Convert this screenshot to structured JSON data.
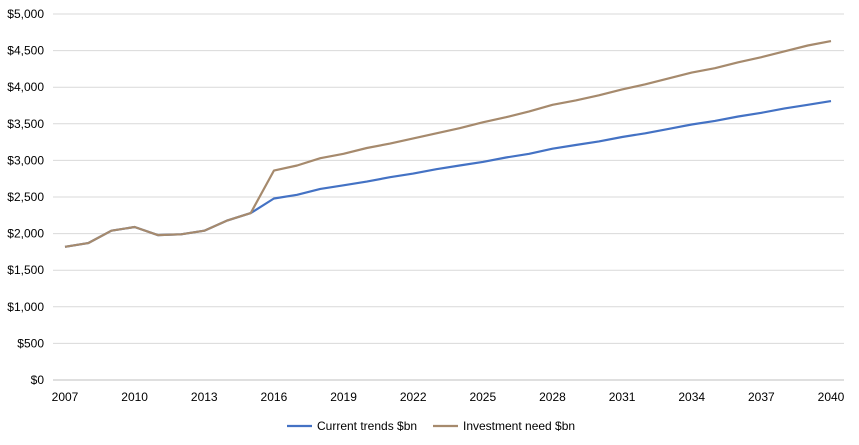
{
  "chart_data": {
    "type": "line",
    "title": "",
    "xlabel": "",
    "ylabel": "",
    "ylim": [
      0,
      5000
    ],
    "yticks": [
      0,
      500,
      1000,
      1500,
      2000,
      2500,
      3000,
      3500,
      4000,
      4500,
      5000
    ],
    "ytick_labels": [
      "$0",
      "$500",
      "$1,000",
      "$1,500",
      "$2,000",
      "$2,500",
      "$3,000",
      "$3,500",
      "$4,000",
      "$4,500",
      "$5,000"
    ],
    "xlim": [
      2007,
      2040
    ],
    "xticks": [
      2007,
      2010,
      2013,
      2016,
      2019,
      2022,
      2025,
      2028,
      2031,
      2034,
      2037,
      2040
    ],
    "xtick_labels": [
      "2007",
      "2010",
      "2013",
      "2016",
      "2019",
      "2022",
      "2025",
      "2028",
      "2031",
      "2034",
      "2037",
      "2040"
    ],
    "grid": true,
    "legend_position": "bottom",
    "x": [
      2007,
      2008,
      2009,
      2010,
      2011,
      2012,
      2013,
      2014,
      2015,
      2016,
      2017,
      2018,
      2019,
      2020,
      2021,
      2022,
      2023,
      2024,
      2025,
      2026,
      2027,
      2028,
      2029,
      2030,
      2031,
      2032,
      2033,
      2034,
      2035,
      2036,
      2037,
      2038,
      2039,
      2040
    ],
    "series": [
      {
        "name": "Current trends $bn",
        "color": "#4472c4",
        "values": [
          1820,
          1870,
          2040,
          2090,
          1980,
          1990,
          2040,
          2180,
          2280,
          2480,
          2530,
          2610,
          2660,
          2710,
          2770,
          2820,
          2880,
          2930,
          2980,
          3040,
          3090,
          3160,
          3210,
          3260,
          3320,
          3370,
          3430,
          3490,
          3540,
          3600,
          3650,
          3710,
          3760,
          3810
        ]
      },
      {
        "name": "Investment need $bn",
        "color": "#a68a6d",
        "values": [
          1820,
          1870,
          2040,
          2090,
          1980,
          1990,
          2040,
          2180,
          2280,
          2860,
          2930,
          3030,
          3090,
          3170,
          3230,
          3300,
          3370,
          3440,
          3520,
          3590,
          3670,
          3760,
          3820,
          3890,
          3970,
          4040,
          4120,
          4200,
          4260,
          4340,
          4410,
          4490,
          4570,
          4630
        ]
      }
    ]
  }
}
